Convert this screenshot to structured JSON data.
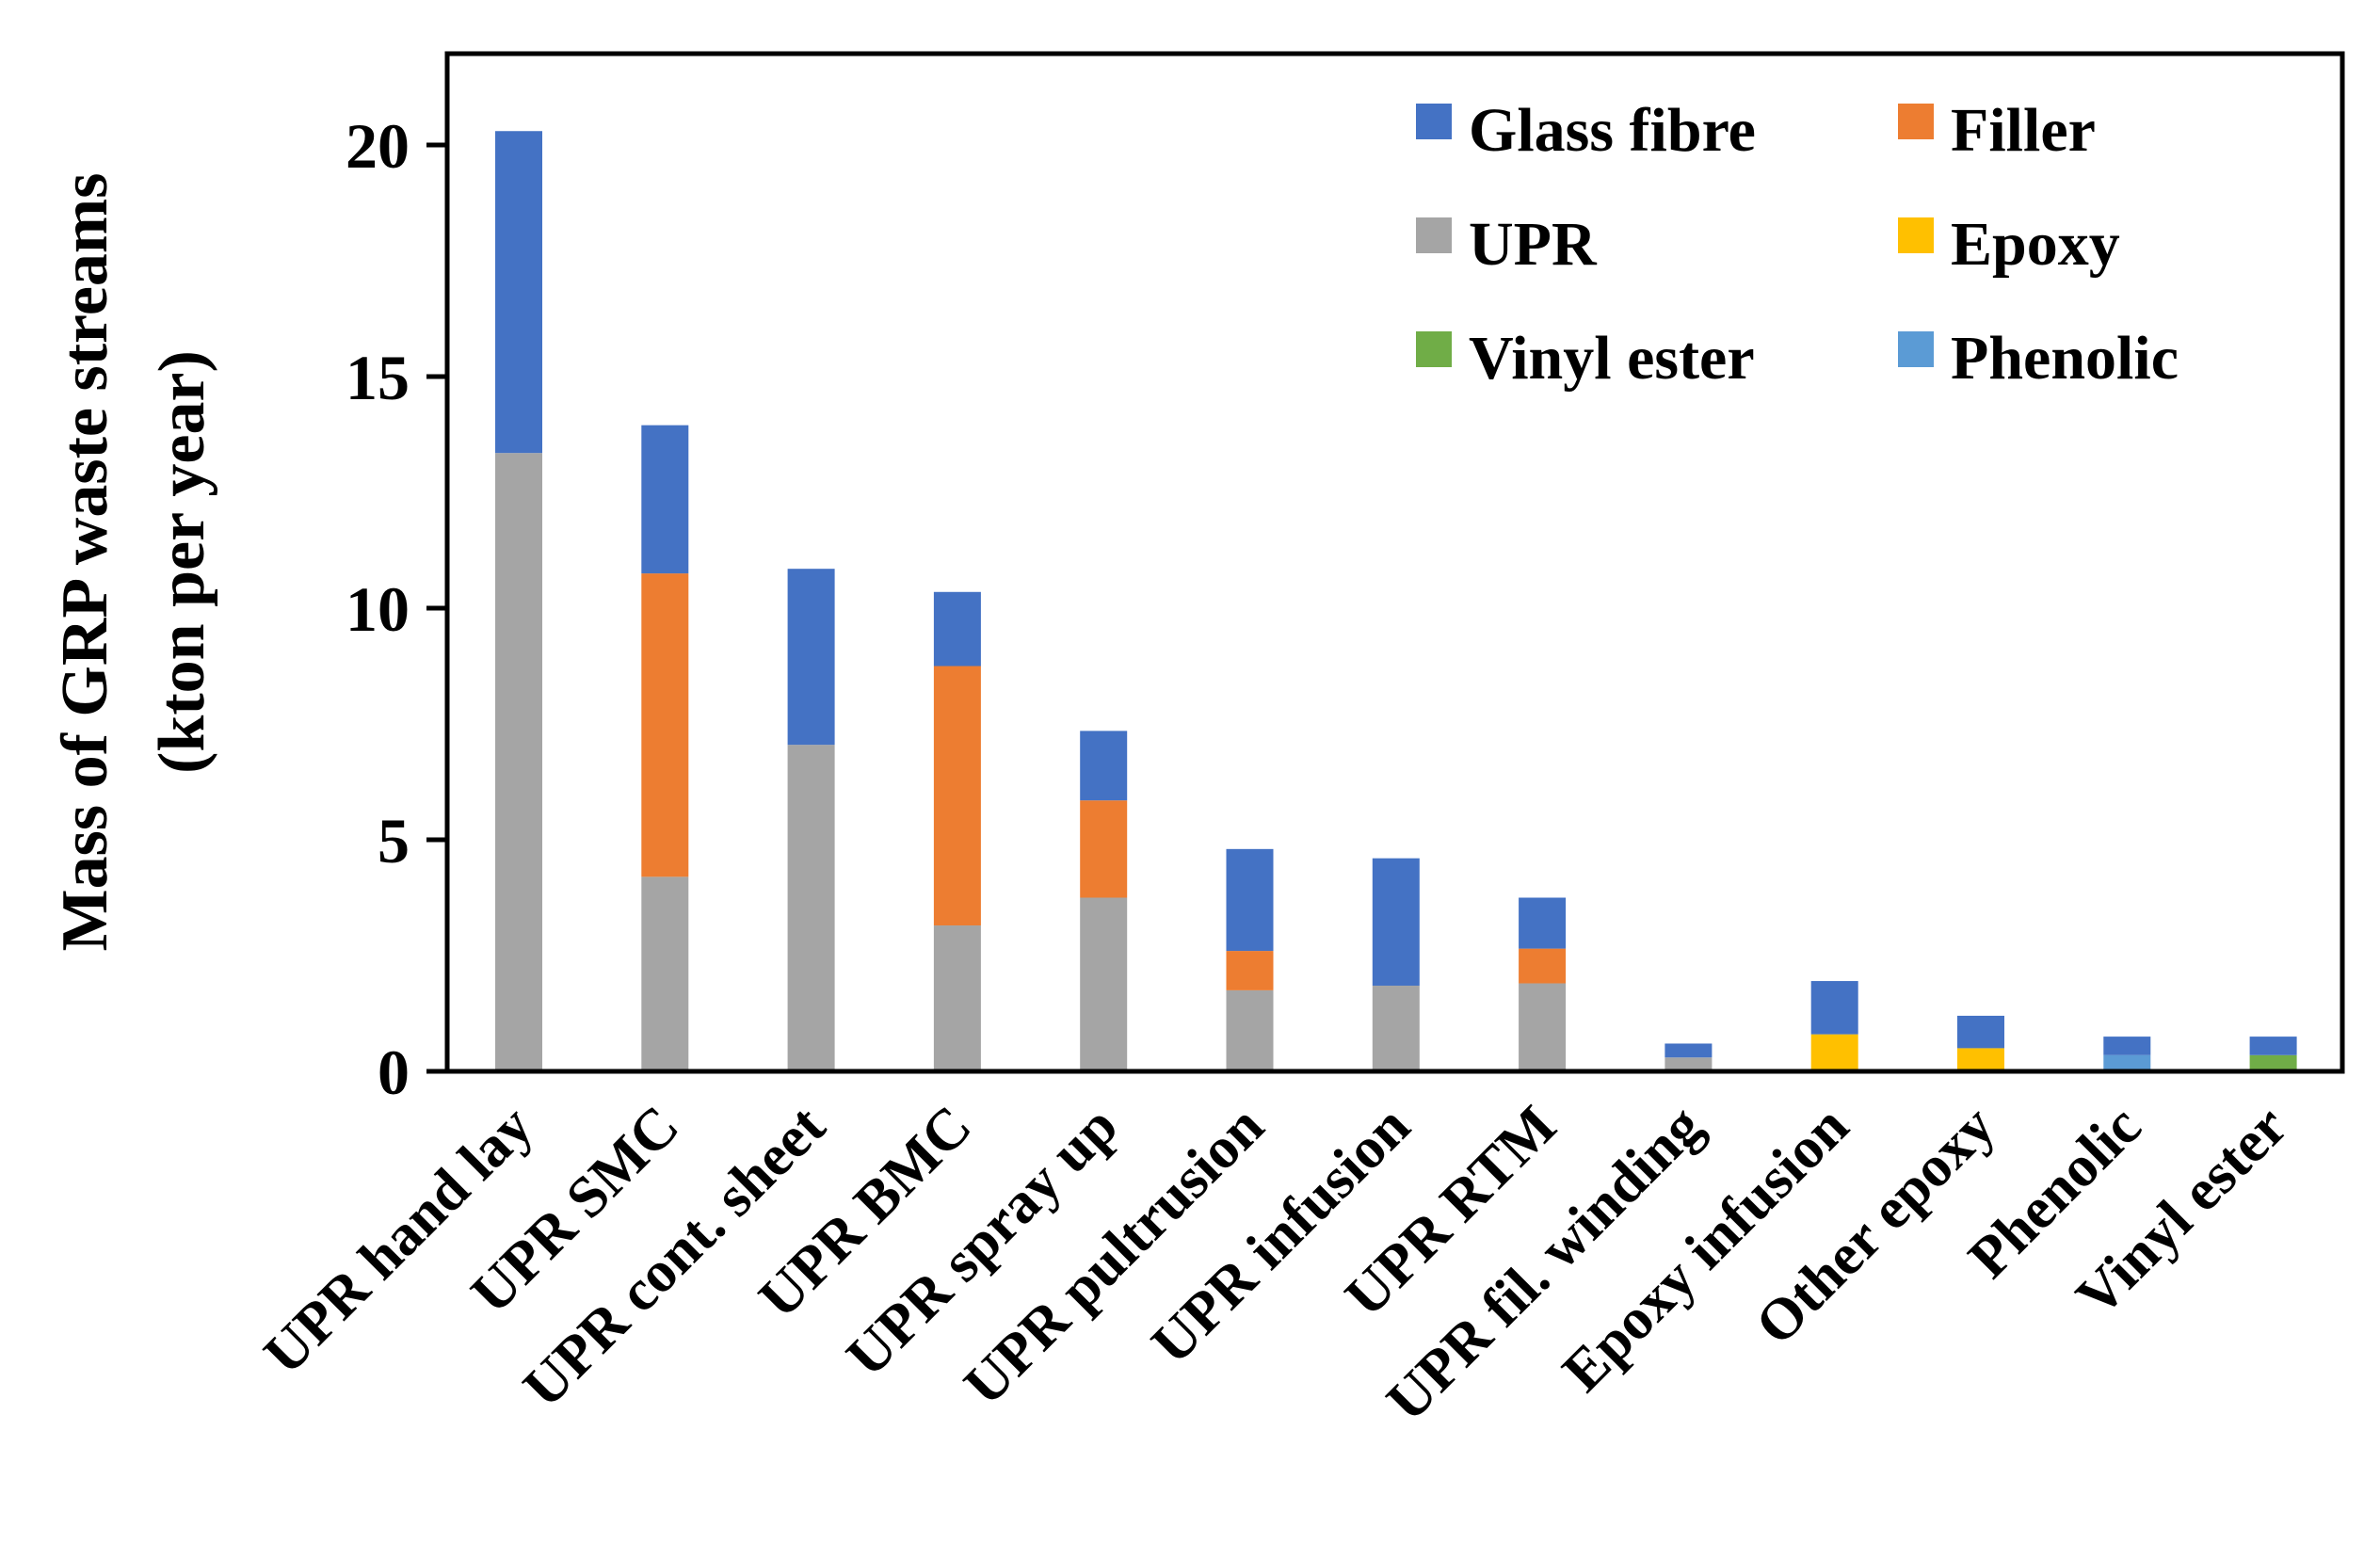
{
  "chart_data": {
    "type": "bar",
    "stacked": true,
    "title": "",
    "xlabel": "",
    "ylabel": "Mass of GRP waste streams (kton per year)",
    "ylabel_lines": [
      "Mass of GRP waste streams",
      "(kton per year)"
    ],
    "ylim": [
      0,
      22
    ],
    "yticks": [
      0,
      5,
      10,
      15,
      20
    ],
    "grid": false,
    "legend_position": "top-right",
    "categories": [
      "UPR hand lay",
      "UPR SMC",
      "UPR cont. sheet",
      "UPR BMC",
      "UPR spray up",
      "UPR pultrusion",
      "UPR infusion",
      "UPR RTM",
      "UPR fil. winding",
      "Epoxy infusion",
      "Other epoxy",
      "Phenolic",
      "Vinyl ester"
    ],
    "series": [
      {
        "name": "UPR",
        "color": "#A5A5A5",
        "values": [
          13.35,
          4.2,
          7.05,
          3.15,
          3.75,
          1.75,
          1.85,
          1.9,
          0.3,
          0,
          0,
          0,
          0
        ]
      },
      {
        "name": "Epoxy",
        "color": "#FFC000",
        "values": [
          0,
          0,
          0,
          0,
          0,
          0,
          0,
          0,
          0,
          0.8,
          0.5,
          0,
          0
        ]
      },
      {
        "name": "Vinyl ester",
        "color": "#70AD47",
        "values": [
          0,
          0,
          0,
          0,
          0,
          0,
          0,
          0,
          0,
          0,
          0,
          0,
          0.35
        ]
      },
      {
        "name": "Phenolic",
        "color": "#5B9BD5",
        "values": [
          0,
          0,
          0,
          0,
          0,
          0,
          0,
          0,
          0,
          0,
          0,
          0.35,
          0
        ]
      },
      {
        "name": "Filler",
        "color": "#ED7D31",
        "values": [
          0,
          6.55,
          0,
          5.6,
          2.1,
          0.85,
          0,
          0.75,
          0,
          0,
          0,
          0,
          0
        ]
      },
      {
        "name": "Glass fibre",
        "color": "#4472C4",
        "values": [
          6.95,
          3.2,
          3.8,
          1.6,
          1.5,
          2.2,
          2.75,
          1.1,
          0.3,
          1.15,
          0.7,
          0.4,
          0.4
        ]
      }
    ],
    "legend_order": [
      "Glass fibre",
      "Filler",
      "UPR",
      "Epoxy",
      "Vinyl ester",
      "Phenolic"
    ]
  }
}
